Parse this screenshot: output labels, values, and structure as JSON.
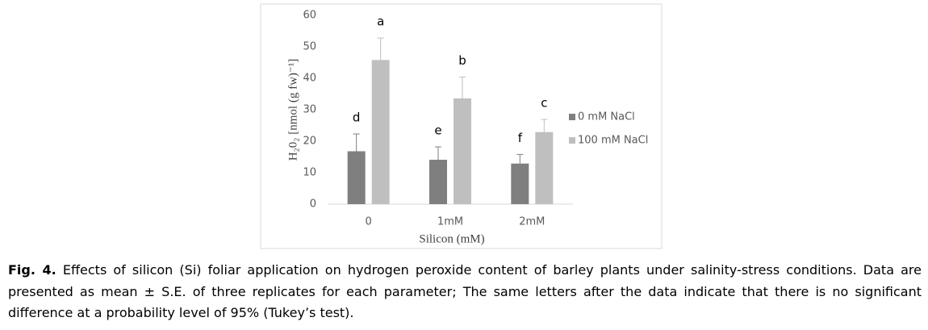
{
  "chart_data": {
    "type": "bar",
    "y_label": "H₂0₂ [nmol (g fw)⁻¹]",
    "x_label": "Silicon (mM)",
    "categories": [
      "0",
      "1mM",
      "2mM"
    ],
    "series": [
      {
        "name": "0 mM NaCl",
        "color": "#7f7f7f",
        "values": [
          16.8,
          14.1,
          12.9
        ],
        "errors": [
          5.5,
          4.1,
          2.9
        ],
        "letters": [
          "d",
          "e",
          "f"
        ]
      },
      {
        "name": "100 mM NaCl",
        "color": "#bfbfbf",
        "values": [
          45.8,
          33.6,
          22.9
        ],
        "errors": [
          7.0,
          6.8,
          4.0
        ],
        "letters": [
          "a",
          "b",
          "c"
        ]
      }
    ],
    "ylim": [
      0,
      60
    ],
    "yticks": [
      0,
      10,
      20,
      30,
      40,
      50,
      60
    ],
    "grid": false,
    "legend": "right"
  },
  "caption": {
    "label": "Fig. 4.",
    "text": "Effects of silicon (Si) foliar application on hydrogen peroxide content of barley plants under salinity-stress conditions. Data are presented as mean ± S.E. of three replicates for each parameter; The same letters after the data indicate that there is no significant difference at a probability level of 95% (Tukey’s test)."
  }
}
